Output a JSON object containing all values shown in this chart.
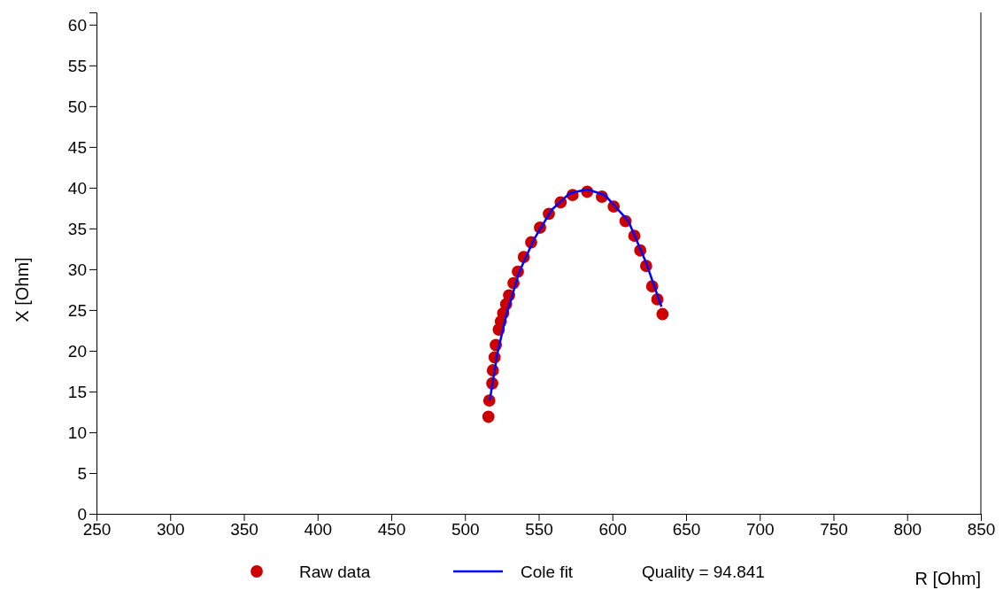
{
  "chart_data": {
    "type": "scatter",
    "xlabel": "R [Ohm]",
    "ylabel": "X [Ohm]",
    "xlim": [
      250,
      850
    ],
    "ylim": [
      0,
      61.5
    ],
    "xticks": [
      250,
      300,
      350,
      400,
      450,
      500,
      550,
      600,
      650,
      700,
      750,
      800,
      850
    ],
    "yticks": [
      0,
      5,
      10,
      15,
      20,
      25,
      30,
      35,
      40,
      45,
      50,
      55,
      60
    ],
    "grid": false,
    "legend": "bottom",
    "annotations": [
      "Quality = 94.841"
    ],
    "series": [
      {
        "name": "Raw data",
        "marker": "circle",
        "color": "#cc0000",
        "x": [
          515.9,
          516.5,
          518.5,
          518.9,
          520.1,
          520.9,
          522.9,
          524.3,
          525.9,
          527.9,
          529.9,
          532.9,
          535.9,
          539.9,
          544.9,
          550.9,
          556.9,
          564.9,
          573.0,
          582.9,
          592.9,
          600.9,
          608.9,
          614.9,
          618.9,
          622.9,
          627.0,
          630.5,
          634.0
        ],
        "values": [
          11.9,
          13.9,
          16.0,
          17.6,
          19.2,
          20.7,
          22.6,
          23.6,
          24.6,
          25.7,
          26.8,
          28.3,
          29.7,
          31.5,
          33.3,
          35.1,
          36.8,
          38.2,
          39.1,
          39.5,
          38.9,
          37.7,
          35.9,
          34.1,
          32.3,
          30.4,
          27.9,
          26.3,
          24.5
        ]
      },
      {
        "name": "Cole fit",
        "type": "line",
        "line_style": "solid",
        "color": "#0000ff",
        "x": [
          516.8,
          521.9,
          527.9,
          536.9,
          546.9,
          558.9,
          570.9,
          582.9,
          594.9,
          610.9,
          622.9,
          633.3
        ],
        "values": [
          13.9,
          19.6,
          24.3,
          29.7,
          33.7,
          37.3,
          39.3,
          39.8,
          39.1,
          35.9,
          30.8,
          25.4
        ]
      }
    ]
  }
}
